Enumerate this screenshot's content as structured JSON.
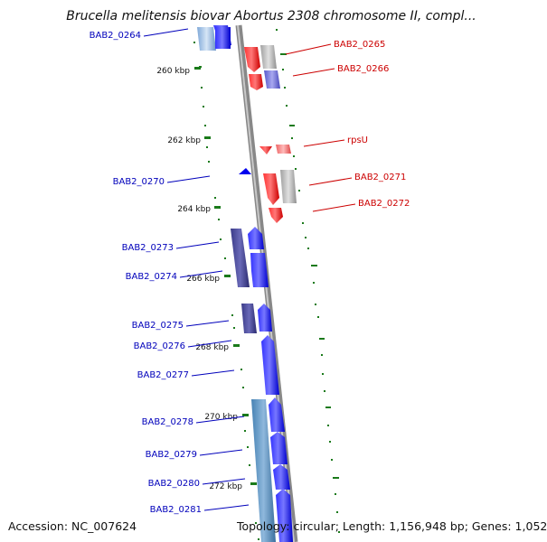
{
  "title": "Brucella melitensis biovar Abortus 2308 chromosome II, compl...",
  "footer": {
    "accession": "Accession: NC_007624",
    "stats": "Topology: circular; Length: 1,156,948 bp; Genes: 1,052"
  },
  "ticks": [
    "260 kbp",
    "262 kbp",
    "264 kbp",
    "266 kbp",
    "268 kbp",
    "270 kbp",
    "272 kbp"
  ],
  "forward_labels": [
    "BAB2_0265",
    "BAB2_0266",
    "rpsU",
    "BAB2_0271",
    "BAB2_0272"
  ],
  "reverse_labels": [
    "BAB2_0264",
    "BAB2_0270",
    "BAB2_0273",
    "BAB2_0274",
    "BAB2_0275",
    "BAB2_0276",
    "BAB2_0277",
    "BAB2_0278",
    "BAB2_0279",
    "BAB2_0280",
    "BAB2_0281"
  ],
  "colors": {
    "forward_gene": "#ff0000",
    "reverse_gene": "#0000ff",
    "backbone": "#808080",
    "tick_mark": "#006400",
    "forward_label": "#cc0000",
    "reverse_label": "#0000bb"
  }
}
